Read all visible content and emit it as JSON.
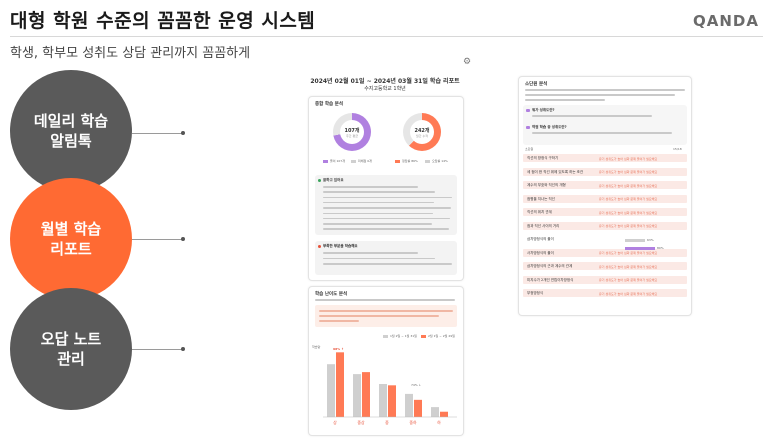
{
  "header": {
    "title": "대형 학원 수준의 꼼꼼한 운영 시스템",
    "logo": "QANDA",
    "subtitle": "학생, 학부모 성취도 상담 관리까지 꼼꼼하게"
  },
  "features": [
    {
      "label": "데일리 학습\n알림톡",
      "color": "#5a5a5a"
    },
    {
      "label": "월별 학습\n리포트",
      "color": "#ff6a33"
    },
    {
      "label": "오답 노트\n관리",
      "color": "#5a5a5a"
    }
  ],
  "report": {
    "period": "2024년 02월 01일 ~ 2024년 03월 31일 학습 리포트",
    "student": "수지고등학교 1학년",
    "summary_title": "종합 학습 분석",
    "ring1": {
      "value": "107개",
      "sub": "주간 평균",
      "fraction": 0.72,
      "color": "#b080e0"
    },
    "ring2": {
      "value": "242개",
      "sub": "월간 누적",
      "fraction": 0.62,
      "color": "#ff7a55"
    },
    "ring1_legend": [
      "풀이 107개",
      "미채점 0개"
    ],
    "ring2_legend": [
      "정답률 86%",
      "오답률 14%"
    ],
    "box1_title": "잘하고 있어요",
    "box2_title": "부족한 부분을 학습해요",
    "trend_title": "학습 난이도 분석",
    "trend_legend": [
      "1월 2일 ~ 1월 31일",
      "2월 1일 ~ 2월 29일"
    ],
    "trend_label": "98% ↑",
    "trend_label2": "74% ↓",
    "trend_y_label": "학습량"
  },
  "analysis": {
    "title": "소단원 분석",
    "q1": "뭐가 성취도란?",
    "q2": "약점 학습 중 성취도란?",
    "list_header": "소단원",
    "list_count": "15/18",
    "pct_a": "63%",
    "pct_b": "80%",
    "units": [
      "직선의 방정식 구하기",
      "세 점이 한 직선 위에 있도록 하는 조건",
      "계수의 부호와 직선의 개형",
      "점평을 지나는 직선",
      "직선의 위치 관계",
      "점과 직선 사이의 거리",
      "삼차방정식의 풀이",
      "사차방정식의 풀이",
      "삼차방정식의 근과 계수의 관계",
      "미지수가 2개인 연립이차방정식",
      "부정방정식"
    ],
    "row_note": "유기 성취도가 높아 심화 문제 풀이가 필요해요"
  },
  "chart_data": {
    "type": "bar",
    "categories": [
      "상",
      "중상",
      "중",
      "중하",
      "하"
    ],
    "series": [
      {
        "name": "1월 2일 ~ 1월 31일",
        "values": [
          80,
          65,
          50,
          35,
          15
        ]
      },
      {
        "name": "2월 1일 ~ 2월 29일",
        "values": [
          98,
          68,
          48,
          26,
          8
        ]
      }
    ],
    "colors": [
      "#cfcfcf",
      "#ff7a55"
    ],
    "ylim": [
      0,
      100
    ]
  }
}
